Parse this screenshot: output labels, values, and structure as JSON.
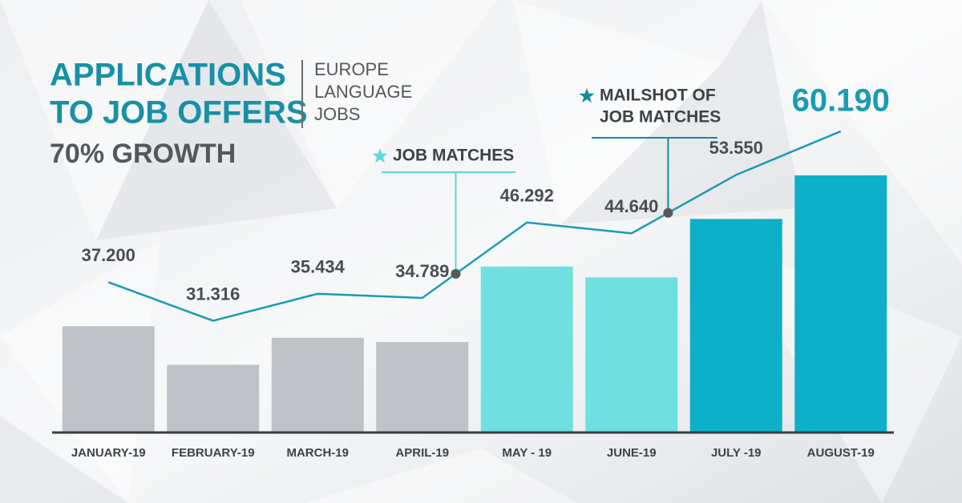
{
  "chart_data": {
    "type": "bar",
    "title": [
      "APPLICATIONS",
      "TO JOB OFFERS"
    ],
    "subtitle": "70% GROWTH",
    "brand": [
      "EUROPE",
      "LANGUAGE",
      "JOBS"
    ],
    "categories": [
      "JANUARY-19",
      "FEBRUARY-19",
      "MARCH-19",
      "APRIL-19",
      "MAY - 19",
      "JUNE-19",
      "JULY -19",
      "AUGUST-19"
    ],
    "values": [
      37200,
      31316,
      35434,
      34789,
      46292,
      44640,
      53550,
      60190
    ],
    "value_labels": [
      "37.200",
      "31.316",
      "35.434",
      "34.789",
      "46.292",
      "44.640",
      "53.550",
      "60.190"
    ],
    "colors": [
      "#bfc2c6",
      "#bfc2c6",
      "#bfc2c6",
      "#bfc2c6",
      "#6fdfe0",
      "#6fdfe0",
      "#0cb0c9",
      "#0cb0c9"
    ],
    "line_color": "#1a9bb3",
    "ylim": [
      21000,
      62500
    ],
    "annotations": [
      {
        "text": [
          "JOB MATCHES"
        ],
        "color": "#5fd6d8"
      },
      {
        "text": [
          "MAILSHOT OF",
          "JOB MATCHES"
        ],
        "color": "#138aa0"
      }
    ]
  }
}
